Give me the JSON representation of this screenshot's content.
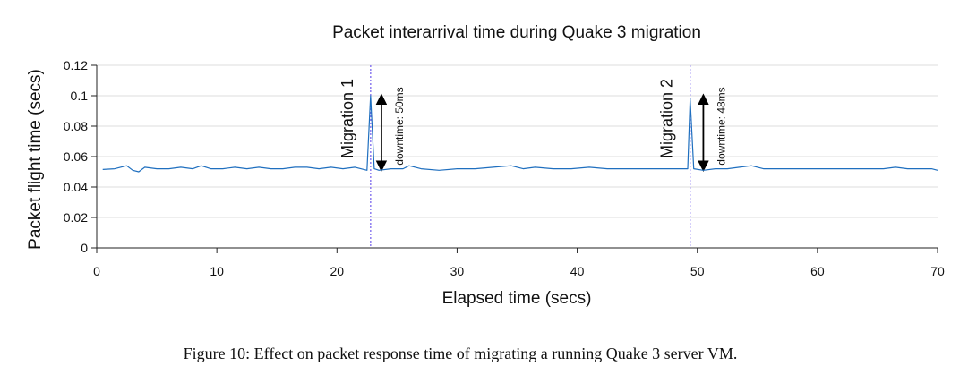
{
  "chart_data": {
    "type": "line",
    "title": "Packet interarrival time during Quake 3 migration",
    "xlabel": "Elapsed time (secs)",
    "ylabel": "Packet flight time (secs)",
    "xlim": [
      0,
      70
    ],
    "ylim": [
      0,
      0.12
    ],
    "xticks": [
      0,
      10,
      20,
      30,
      40,
      50,
      60,
      70
    ],
    "yticks": [
      0,
      0.02,
      0.04,
      0.06,
      0.08,
      0.1,
      0.12
    ],
    "xtick_labels": [
      "0",
      "10",
      "20",
      "30",
      "40",
      "50",
      "60",
      "70"
    ],
    "ytick_labels": [
      "0",
      "0.02",
      "0.04",
      "0.06",
      "0.08",
      "0.1",
      "0.12"
    ],
    "grid": "horizontal",
    "baseline": 0.0515,
    "series_color": "#1f6fbf",
    "x": [
      0.5,
      1.5,
      2.5,
      3.0,
      3.5,
      4.0,
      5.0,
      6.0,
      7.0,
      8.0,
      8.7,
      9.5,
      10.5,
      11.5,
      12.5,
      13.5,
      14.5,
      15.5,
      16.5,
      17.5,
      18.5,
      19.5,
      20.5,
      21.5,
      22.5,
      22.8,
      23.1,
      23.5,
      24.5,
      25.5,
      26.0,
      27.0,
      28.5,
      30.0,
      31.5,
      33.0,
      34.5,
      35.5,
      36.5,
      38.0,
      39.5,
      41.0,
      42.5,
      44.0,
      45.5,
      47.0,
      48.5,
      49.2,
      49.4,
      49.7,
      50.5,
      51.5,
      52.5,
      53.5,
      54.5,
      55.5,
      56.5,
      58.0,
      59.5,
      61.0,
      62.5,
      64.0,
      65.5,
      66.5,
      67.5,
      68.5,
      69.5,
      70.0
    ],
    "y": [
      0.0515,
      0.052,
      0.054,
      0.051,
      0.05,
      0.053,
      0.052,
      0.052,
      0.053,
      0.052,
      0.054,
      0.052,
      0.052,
      0.053,
      0.052,
      0.053,
      0.052,
      0.052,
      0.053,
      0.053,
      0.052,
      0.053,
      0.052,
      0.053,
      0.051,
      0.1,
      0.052,
      0.051,
      0.052,
      0.052,
      0.054,
      0.052,
      0.051,
      0.052,
      0.052,
      0.053,
      0.054,
      0.052,
      0.053,
      0.052,
      0.052,
      0.053,
      0.052,
      0.052,
      0.052,
      0.052,
      0.052,
      0.052,
      0.098,
      0.052,
      0.051,
      0.052,
      0.052,
      0.053,
      0.054,
      0.052,
      0.052,
      0.052,
      0.052,
      0.052,
      0.052,
      0.052,
      0.052,
      0.053,
      0.052,
      0.052,
      0.052,
      0.051
    ],
    "migrations": [
      {
        "x": 22.8,
        "label": "Migration 1",
        "downtime_label": "downtime: 50ms",
        "arrow_x": 23.7
      },
      {
        "x": 49.4,
        "label": "Migration 2",
        "downtime_label": "downtime: 48ms",
        "arrow_x": 50.5
      }
    ],
    "annotation_color": "#7b68ee"
  },
  "caption": "Figure 10: Effect on packet response time of migrating a running Quake 3 server VM."
}
